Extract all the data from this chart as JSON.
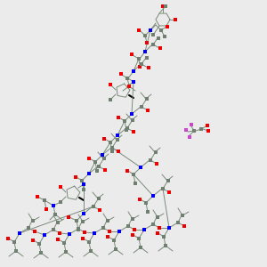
{
  "background_color": "#ebebeb",
  "bond_color": "#7a8a7a",
  "N_color": "#0000ee",
  "O_color": "#ee0000",
  "C_color": "#708070",
  "F_color": "#cc44cc",
  "lw": 0.7,
  "sq": 3.5,
  "fig_width": 3.0,
  "fig_height": 3.0,
  "dpi": 100,
  "scale": 1.0
}
